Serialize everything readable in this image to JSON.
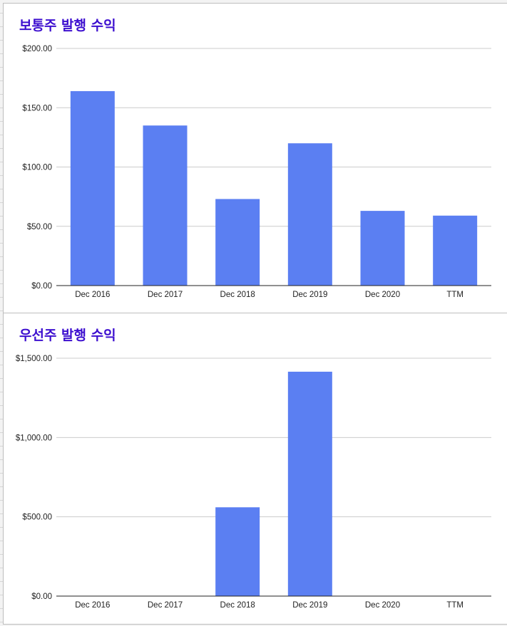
{
  "theme": {
    "title_color": "#3d0fcf",
    "bar_color": "#5b7ff2",
    "grid_color": "#cccccc",
    "axis_color": "#222222"
  },
  "chart_data": [
    {
      "type": "bar",
      "title": "보통주 발행 수익",
      "categories": [
        "Dec 2016",
        "Dec 2017",
        "Dec 2018",
        "Dec 2019",
        "Dec 2020",
        "TTM"
      ],
      "values": [
        164,
        135,
        73,
        120,
        63,
        59
      ],
      "ylim": [
        0,
        200
      ],
      "yticks": [
        0,
        50,
        100,
        150,
        200
      ],
      "ytick_labels": [
        "$0.00",
        "$50.00",
        "$100.00",
        "$150.00",
        "$200.00"
      ],
      "xlabel": "",
      "ylabel": "",
      "grid": true
    },
    {
      "type": "bar",
      "title": "우선주 발행 수익",
      "categories": [
        "Dec 2016",
        "Dec 2017",
        "Dec 2018",
        "Dec 2019",
        "Dec 2020",
        "TTM"
      ],
      "values": [
        0,
        0,
        560,
        1415,
        0,
        0
      ],
      "ylim": [
        0,
        1500
      ],
      "yticks": [
        0,
        500,
        1000,
        1500
      ],
      "ytick_labels": [
        "$0.00",
        "$500.00",
        "$1,000.00",
        "$1,500.00"
      ],
      "xlabel": "",
      "ylabel": "",
      "grid": true
    }
  ]
}
